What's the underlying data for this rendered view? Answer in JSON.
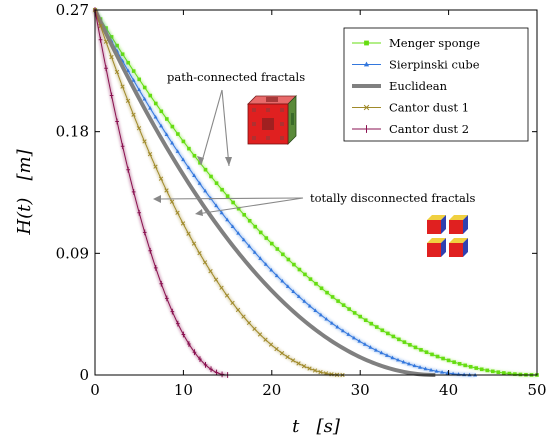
{
  "chart_data": {
    "type": "line",
    "xlabel": "t   [s]",
    "ylabel": "H(t)   [m]",
    "xlim": [
      0,
      50
    ],
    "ylim": [
      0,
      0.27
    ],
    "xticks": [
      "0",
      "10",
      "20",
      "30",
      "40",
      "50"
    ],
    "yticks": [
      "0",
      "0.09",
      "0.18",
      "0.27"
    ],
    "legend_position": "top-right",
    "series": [
      {
        "name": "Menger sponge",
        "color": "#66dd11",
        "marker": "square",
        "linestyle": "marked",
        "h0": 0.27,
        "t_end": 50
      },
      {
        "name": "Sierpinski cube",
        "color": "#3377dd",
        "marker": "triangle",
        "linestyle": "marked",
        "h0": 0.27,
        "t_end": 43
      },
      {
        "name": "Euclidean",
        "color": "#808080",
        "marker": "none",
        "linestyle": "thick",
        "h0": 0.27,
        "t_end": 38.5
      },
      {
        "name": "Cantor dust 1",
        "color": "#a08a2a",
        "marker": "x",
        "linestyle": "marked",
        "h0": 0.27,
        "t_end": 28
      },
      {
        "name": "Cantor dust 2",
        "color": "#8a1050",
        "marker": "plus",
        "linestyle": "marked",
        "h0": 0.27,
        "t_end": 15
      }
    ],
    "annotations": [
      {
        "text": "path-connected fractals"
      },
      {
        "text": "totally disconnected fractals"
      }
    ]
  }
}
